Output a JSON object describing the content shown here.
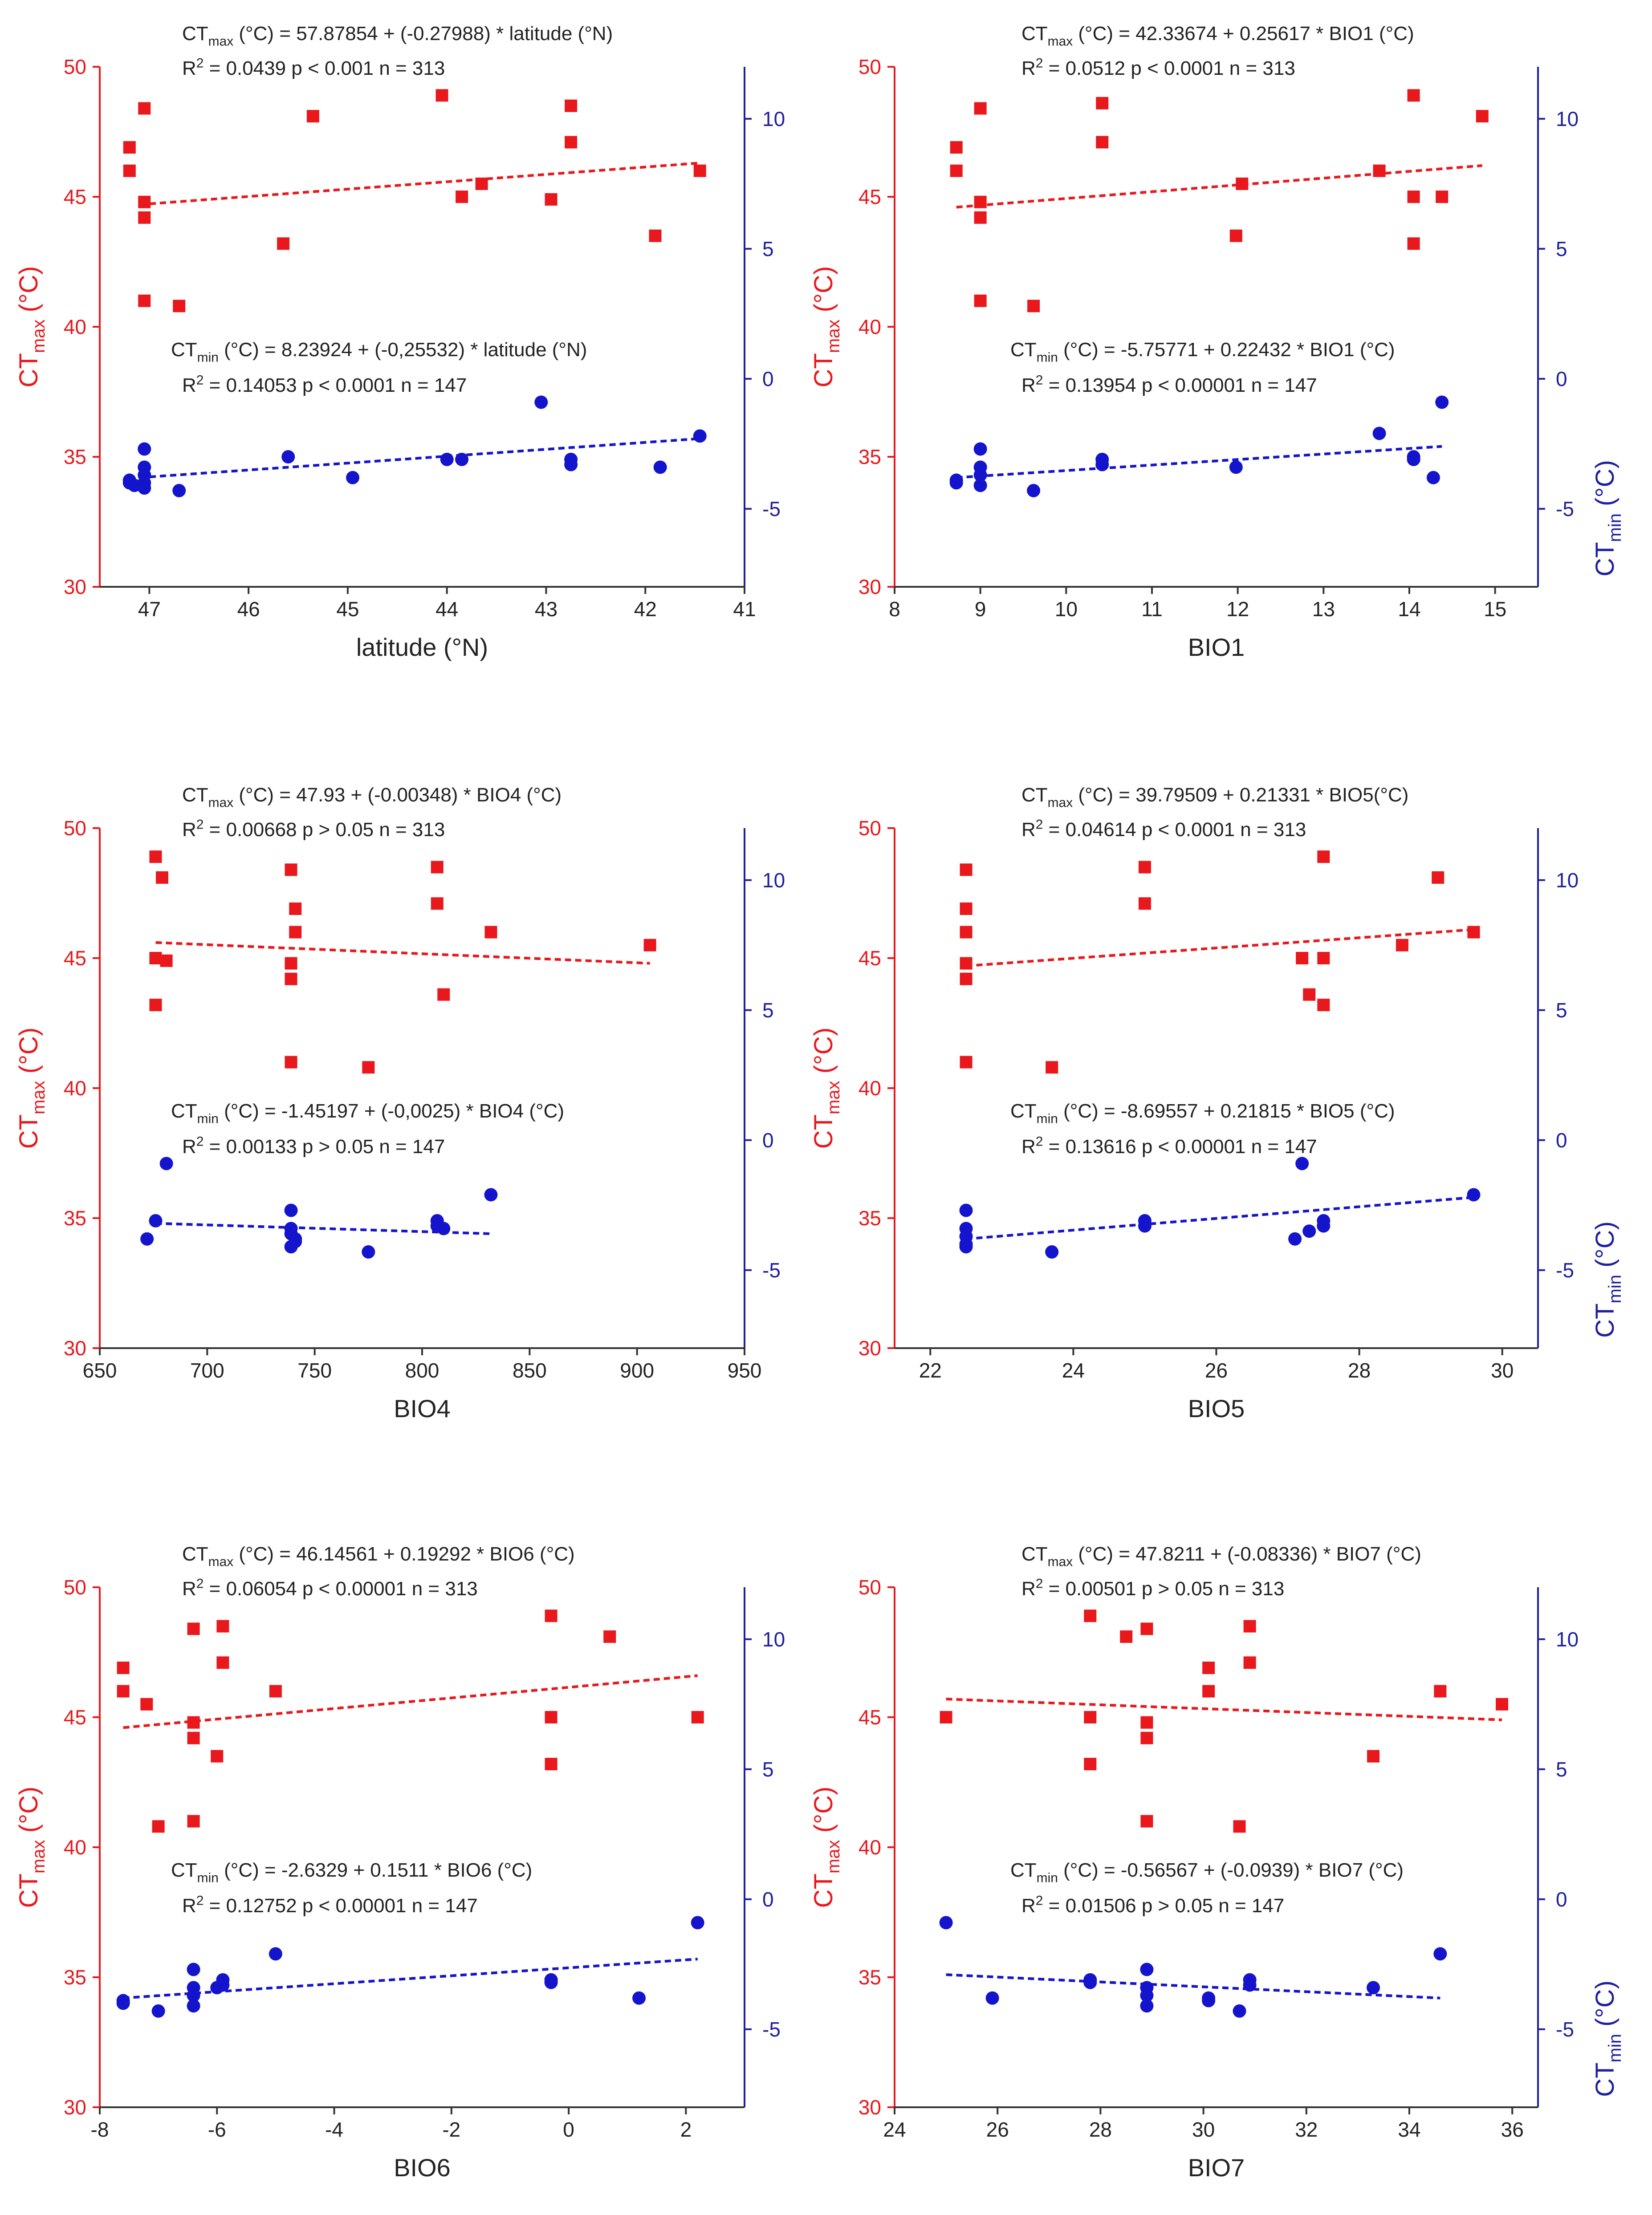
{
  "colors": {
    "ctmax": "#e8181c",
    "ctmin": "#1414cc",
    "axis_left": "#e8181c",
    "axis_right": "#1e1ea0",
    "text": "#222222"
  },
  "left_axis_label": {
    "main": "CT",
    "sub": "max",
    "unit": " (°C)"
  },
  "right_axis_label": {
    "main": "CT",
    "sub": "min",
    "unit": " (°C)"
  },
  "chart_data": [
    {
      "id": "latitude",
      "type": "scatter",
      "xlabel": "latitude (°N)",
      "xlim": [
        47.5,
        41
      ],
      "xticks": [
        47,
        46,
        45,
        44,
        43,
        42,
        41
      ],
      "xtick_labels": [
        "47",
        "46",
        "45",
        "44",
        "43",
        "42",
        "41"
      ],
      "ylim_left": [
        30,
        50
      ],
      "yticks_left": [
        30,
        35,
        40,
        45,
        50
      ],
      "ylim_right": [
        -8,
        12
      ],
      "yticks_right": [
        -5,
        0,
        5,
        10
      ],
      "show_right_label": false,
      "ctmax_equation": {
        "pre": "CT",
        "sub": "max",
        "post": " (°C) = 57.87854 + (-0.27988) * latitude (°N)"
      },
      "ctmax_stats": {
        "pre": "R",
        "sup": "2",
        "post": " = 0.0439   p < 0.001    n = 313"
      },
      "ctmin_equation": {
        "pre": "CT",
        "sub": "min",
        "post": " (°C) = 8.23924 + (-0,25532) * latitude (°N)"
      },
      "ctmin_stats": {
        "pre": "R",
        "sup": "2",
        "post": " = 0.14053   p < 0.0001    n = 147"
      },
      "ctmax_points": [
        [
          47.2,
          46.9
        ],
        [
          47.2,
          46.0
        ],
        [
          47.05,
          48.4
        ],
        [
          47.05,
          44.8
        ],
        [
          47.05,
          44.2
        ],
        [
          47.05,
          41.0
        ],
        [
          46.7,
          40.8
        ],
        [
          45.65,
          43.2
        ],
        [
          45.35,
          48.1
        ],
        [
          44.05,
          48.9
        ],
        [
          43.85,
          45.0
        ],
        [
          43.65,
          45.5
        ],
        [
          42.95,
          44.9
        ],
        [
          42.75,
          48.5
        ],
        [
          42.75,
          47.1
        ],
        [
          41.9,
          43.5
        ],
        [
          41.45,
          46.0
        ]
      ],
      "ctmin_points": [
        [
          47.2,
          -3.9
        ],
        [
          47.2,
          -4.0
        ],
        [
          47.15,
          -4.1
        ],
        [
          47.05,
          -2.7
        ],
        [
          47.05,
          -3.4
        ],
        [
          47.05,
          -3.7
        ],
        [
          47.05,
          -4.0
        ],
        [
          47.05,
          -4.2
        ],
        [
          46.7,
          -4.3
        ],
        [
          45.6,
          -3.0
        ],
        [
          44.95,
          -3.8
        ],
        [
          44.0,
          -3.1
        ],
        [
          43.85,
          -3.1
        ],
        [
          43.05,
          -0.9
        ],
        [
          42.75,
          -3.1
        ],
        [
          42.75,
          -3.3
        ],
        [
          41.85,
          -3.4
        ],
        [
          41.45,
          -2.2
        ]
      ],
      "ctmax_fit": [
        [
          47.1,
          44.7
        ],
        [
          41.45,
          46.3
        ]
      ],
      "ctmin_fit": [
        [
          47.1,
          -3.8
        ],
        [
          41.45,
          -2.3
        ]
      ]
    },
    {
      "id": "bio1",
      "type": "scatter",
      "xlabel": "BIO1",
      "xlim": [
        8,
        15.5
      ],
      "xticks": [
        8,
        9,
        10,
        11,
        12,
        13,
        14,
        15
      ],
      "xtick_labels": [
        "8",
        "9",
        "10",
        "11",
        "12",
        "13",
        "14",
        "15"
      ],
      "ylim_left": [
        30,
        50
      ],
      "yticks_left": [
        30,
        35,
        40,
        45,
        50
      ],
      "ylim_right": [
        -8,
        12
      ],
      "yticks_right": [
        -5,
        0,
        5,
        10
      ],
      "show_right_label": true,
      "ctmax_equation": {
        "pre": "CT",
        "sub": "max",
        "post": " (°C) = 42.33674 + 0.25617 * BIO1 (°C)"
      },
      "ctmax_stats": {
        "pre": "R",
        "sup": "2",
        "post": " = 0.0512   p < 0.0001    n = 313"
      },
      "ctmin_equation": {
        "pre": "CT",
        "sub": "min",
        "post": " (°C) = -5.75771 + 0.22432 * BIO1 (°C)"
      },
      "ctmin_stats": {
        "pre": "R",
        "sup": "2",
        "post": " = 0.13954   p < 0.00001    n = 147"
      },
      "ctmax_points": [
        [
          8.72,
          46.9
        ],
        [
          8.72,
          46.0
        ],
        [
          9.0,
          48.4
        ],
        [
          9.0,
          44.8
        ],
        [
          9.0,
          44.2
        ],
        [
          9.0,
          41.0
        ],
        [
          9.62,
          40.8
        ],
        [
          10.42,
          48.6
        ],
        [
          10.42,
          47.1
        ],
        [
          12.05,
          45.5
        ],
        [
          11.98,
          43.5
        ],
        [
          13.65,
          46.0
        ],
        [
          14.05,
          48.9
        ],
        [
          14.05,
          45.0
        ],
        [
          14.05,
          43.2
        ],
        [
          14.38,
          45.0
        ],
        [
          14.85,
          48.1
        ]
      ],
      "ctmin_points": [
        [
          8.72,
          -3.9
        ],
        [
          8.72,
          -4.0
        ],
        [
          9.0,
          -2.7
        ],
        [
          9.0,
          -3.4
        ],
        [
          9.0,
          -3.7
        ],
        [
          9.0,
          -4.1
        ],
        [
          9.62,
          -4.3
        ],
        [
          10.42,
          -3.1
        ],
        [
          10.42,
          -3.3
        ],
        [
          11.98,
          -3.4
        ],
        [
          13.65,
          -2.1
        ],
        [
          14.05,
          -3.0
        ],
        [
          14.05,
          -3.1
        ],
        [
          14.28,
          -3.8
        ],
        [
          14.38,
          -0.9
        ]
      ],
      "ctmax_fit": [
        [
          8.72,
          44.6
        ],
        [
          14.85,
          46.2
        ]
      ],
      "ctmin_fit": [
        [
          8.72,
          -3.8
        ],
        [
          14.38,
          -2.6
        ]
      ]
    },
    {
      "id": "bio4",
      "type": "scatter",
      "xlabel": "BIO4",
      "xlim": [
        650,
        950
      ],
      "xticks": [
        650,
        700,
        750,
        800,
        850,
        900,
        950
      ],
      "xtick_labels": [
        "650",
        "700",
        "750",
        "800",
        "850",
        "900",
        "950"
      ],
      "ylim_left": [
        30,
        50
      ],
      "yticks_left": [
        30,
        35,
        40,
        45,
        50
      ],
      "ylim_right": [
        -8,
        12
      ],
      "yticks_right": [
        -5,
        0,
        5,
        10
      ],
      "show_right_label": false,
      "ctmax_equation": {
        "pre": "CT",
        "sub": "max",
        "post": " (°C) = 47.93 + (-0.00348) * BIO4 (°C)"
      },
      "ctmax_stats": {
        "pre": "R",
        "sup": "2",
        "post": " = 0.00668   p > 0.05    n = 313"
      },
      "ctmin_equation": {
        "pre": "CT",
        "sub": "min",
        "post": " (°C) = -1.45197 + (-0,0025) * BIO4 (°C)"
      },
      "ctmin_stats": {
        "pre": "R",
        "sup": "2",
        "post": " = 0.00133    p > 0.05    n = 147"
      },
      "ctmax_points": [
        [
          676,
          48.9
        ],
        [
          679,
          48.1
        ],
        [
          676,
          45.0
        ],
        [
          681,
          44.9
        ],
        [
          676,
          43.2
        ],
        [
          739,
          48.4
        ],
        [
          741,
          46.9
        ],
        [
          741,
          46.0
        ],
        [
          739,
          44.8
        ],
        [
          739,
          44.2
        ],
        [
          739,
          41.0
        ],
        [
          775,
          40.8
        ],
        [
          807,
          48.5
        ],
        [
          807,
          47.1
        ],
        [
          810,
          43.6
        ],
        [
          832,
          46.0
        ],
        [
          906,
          45.5
        ]
      ],
      "ctmin_points": [
        [
          681,
          -0.9
        ],
        [
          676,
          -3.1
        ],
        [
          672,
          -3.8
        ],
        [
          739,
          -2.7
        ],
        [
          739,
          -3.4
        ],
        [
          739,
          -3.6
        ],
        [
          741,
          -3.8
        ],
        [
          739,
          -4.1
        ],
        [
          741,
          -3.9
        ],
        [
          775,
          -4.3
        ],
        [
          807,
          -3.1
        ],
        [
          807,
          -3.3
        ],
        [
          810,
          -3.4
        ],
        [
          832,
          -2.1
        ]
      ],
      "ctmax_fit": [
        [
          676,
          45.6
        ],
        [
          906,
          44.8
        ]
      ],
      "ctmin_fit": [
        [
          676,
          -3.2
        ],
        [
          832,
          -3.6
        ]
      ]
    },
    {
      "id": "bio5",
      "type": "scatter",
      "xlabel": "BIO5",
      "xlim": [
        21.5,
        30.5
      ],
      "xticks": [
        22,
        24,
        26,
        28,
        30
      ],
      "xtick_labels": [
        "22",
        "24",
        "26",
        "28",
        "30"
      ],
      "ylim_left": [
        30,
        50
      ],
      "yticks_left": [
        30,
        35,
        40,
        45,
        50
      ],
      "ylim_right": [
        -8,
        12
      ],
      "yticks_right": [
        -5,
        0,
        5,
        10
      ],
      "show_right_label": true,
      "ctmax_equation": {
        "pre": "CT",
        "sub": "max",
        "post": " (°C) = 39.79509 + 0.21331 * BIO5(°C)"
      },
      "ctmax_stats": {
        "pre": "R",
        "sup": "2",
        "post": " = 0.04614    p < 0.0001    n = 313"
      },
      "ctmin_equation": {
        "pre": "CT",
        "sub": "min",
        "post": " (°C) = -8.69557 + 0.21815 * BIO5 (°C)"
      },
      "ctmin_stats": {
        "pre": "R",
        "sup": "2",
        "post": " = 0.13616    p < 0.00001    n = 147"
      },
      "ctmax_points": [
        [
          22.5,
          48.4
        ],
        [
          22.5,
          46.9
        ],
        [
          22.5,
          46.0
        ],
        [
          22.5,
          44.8
        ],
        [
          22.5,
          44.2
        ],
        [
          22.5,
          41.0
        ],
        [
          23.7,
          40.8
        ],
        [
          25.0,
          48.5
        ],
        [
          25.0,
          47.1
        ],
        [
          27.2,
          45.0
        ],
        [
          27.3,
          43.6
        ],
        [
          27.5,
          43.2
        ],
        [
          27.5,
          48.9
        ],
        [
          27.5,
          45.0
        ],
        [
          28.6,
          45.5
        ],
        [
          29.1,
          48.1
        ],
        [
          29.6,
          46.0
        ]
      ],
      "ctmin_points": [
        [
          22.5,
          -2.7
        ],
        [
          22.5,
          -3.4
        ],
        [
          22.5,
          -3.7
        ],
        [
          22.5,
          -4.0
        ],
        [
          22.5,
          -4.1
        ],
        [
          23.7,
          -4.3
        ],
        [
          25.0,
          -3.1
        ],
        [
          25.0,
          -3.3
        ],
        [
          27.1,
          -3.8
        ],
        [
          27.2,
          -0.9
        ],
        [
          27.3,
          -3.5
        ],
        [
          27.5,
          -3.1
        ],
        [
          27.5,
          -3.3
        ],
        [
          29.6,
          -2.1
        ]
      ],
      "ctmax_fit": [
        [
          22.5,
          44.7
        ],
        [
          29.6,
          46.1
        ]
      ],
      "ctmin_fit": [
        [
          22.5,
          -3.8
        ],
        [
          29.6,
          -2.2
        ]
      ]
    },
    {
      "id": "bio6",
      "type": "scatter",
      "xlabel": "BIO6",
      "xlim": [
        -8,
        3
      ],
      "xticks": [
        -8,
        -6,
        -4,
        -2,
        0,
        2
      ],
      "xtick_labels": [
        "-8",
        "-6",
        "-4",
        "-2",
        "0",
        "2"
      ],
      "ylim_left": [
        30,
        50
      ],
      "yticks_left": [
        30,
        35,
        40,
        45,
        50
      ],
      "ylim_right": [
        -8,
        12
      ],
      "yticks_right": [
        -5,
        0,
        5,
        10
      ],
      "show_right_label": false,
      "ctmax_equation": {
        "pre": "CT",
        "sub": "max",
        "post": " (°C) = 46.14561 + 0.19292 * BIO6 (°C)"
      },
      "ctmax_stats": {
        "pre": "R",
        "sup": "2",
        "post": " = 0.06054    p < 0.00001    n = 313"
      },
      "ctmin_equation": {
        "pre": "CT",
        "sub": "min",
        "post": " (°C) = -2.6329 + 0.1511 * BIO6 (°C)"
      },
      "ctmin_stats": {
        "pre": "R",
        "sup": "2",
        "post": " = 0.12752    p < 0.00001    n = 147"
      },
      "ctmax_points": [
        [
          -7.6,
          46.9
        ],
        [
          -7.6,
          46.0
        ],
        [
          -7.2,
          45.5
        ],
        [
          -7.0,
          40.8
        ],
        [
          -6.4,
          48.4
        ],
        [
          -6.4,
          44.8
        ],
        [
          -6.4,
          44.2
        ],
        [
          -6.4,
          41.0
        ],
        [
          -6.0,
          43.5
        ],
        [
          -5.9,
          48.5
        ],
        [
          -5.9,
          47.1
        ],
        [
          -5.0,
          46.0
        ],
        [
          -0.3,
          48.9
        ],
        [
          -0.3,
          45.0
        ],
        [
          -0.3,
          43.2
        ],
        [
          0.7,
          48.1
        ],
        [
          2.2,
          45.0
        ]
      ],
      "ctmin_points": [
        [
          -7.6,
          -3.9
        ],
        [
          -7.6,
          -4.0
        ],
        [
          -7.0,
          -4.3
        ],
        [
          -6.4,
          -2.7
        ],
        [
          -6.4,
          -3.4
        ],
        [
          -6.4,
          -3.7
        ],
        [
          -6.4,
          -4.1
        ],
        [
          -6.0,
          -3.4
        ],
        [
          -5.9,
          -3.1
        ],
        [
          -5.9,
          -3.3
        ],
        [
          -5.0,
          -2.1
        ],
        [
          -0.3,
          -3.1
        ],
        [
          -0.3,
          -3.2
        ],
        [
          1.2,
          -3.8
        ],
        [
          2.2,
          -0.9
        ]
      ],
      "ctmax_fit": [
        [
          -7.6,
          44.6
        ],
        [
          2.2,
          46.6
        ]
      ],
      "ctmin_fit": [
        [
          -7.6,
          -3.8
        ],
        [
          2.2,
          -2.3
        ]
      ]
    },
    {
      "id": "bio7",
      "type": "scatter",
      "xlabel": "BIO7",
      "xlim": [
        24,
        36.5
      ],
      "xticks": [
        24,
        26,
        28,
        30,
        32,
        34,
        36
      ],
      "xtick_labels": [
        "24",
        "26",
        "28",
        "30",
        "32",
        "34",
        "36"
      ],
      "ylim_left": [
        30,
        50
      ],
      "yticks_left": [
        30,
        35,
        40,
        45,
        50
      ],
      "ylim_right": [
        -8,
        12
      ],
      "yticks_right": [
        -5,
        0,
        5,
        10
      ],
      "show_right_label": true,
      "ctmax_equation": {
        "pre": "CT",
        "sub": "max",
        "post": " (°C) = 47.8211 + (-0.08336) * BIO7 (°C)"
      },
      "ctmax_stats": {
        "pre": "R",
        "sup": "2",
        "post": " = 0.00501    p > 0.05    n = 313"
      },
      "ctmin_equation": {
        "pre": "CT",
        "sub": "min",
        "post": " (°C) = -0.56567 + (-0.0939) * BIO7 (°C)"
      },
      "ctmin_stats": {
        "pre": "R",
        "sup": "2",
        "post": " = 0.01506    p > 0.05    n = 147"
      },
      "ctmax_points": [
        [
          25.0,
          45.0
        ],
        [
          27.8,
          48.9
        ],
        [
          27.8,
          45.0
        ],
        [
          27.8,
          43.2
        ],
        [
          28.5,
          48.1
        ],
        [
          28.9,
          48.4
        ],
        [
          28.9,
          44.8
        ],
        [
          28.9,
          44.2
        ],
        [
          28.9,
          41.0
        ],
        [
          30.1,
          46.9
        ],
        [
          30.1,
          46.0
        ],
        [
          30.7,
          40.8
        ],
        [
          30.9,
          48.5
        ],
        [
          30.9,
          47.1
        ],
        [
          33.3,
          43.5
        ],
        [
          34.6,
          46.0
        ],
        [
          35.8,
          45.5
        ]
      ],
      "ctmin_points": [
        [
          25.0,
          -0.9
        ],
        [
          25.9,
          -3.8
        ],
        [
          27.8,
          -3.1
        ],
        [
          27.8,
          -3.2
        ],
        [
          28.9,
          -2.7
        ],
        [
          28.9,
          -3.4
        ],
        [
          28.9,
          -3.7
        ],
        [
          28.9,
          -4.1
        ],
        [
          30.1,
          -3.8
        ],
        [
          30.1,
          -3.9
        ],
        [
          30.7,
          -4.3
        ],
        [
          30.9,
          -3.1
        ],
        [
          30.9,
          -3.3
        ],
        [
          33.3,
          -3.4
        ],
        [
          34.6,
          -2.1
        ]
      ],
      "ctmax_fit": [
        [
          25.0,
          45.7
        ],
        [
          35.8,
          44.9
        ]
      ],
      "ctmin_fit": [
        [
          25.0,
          -2.9
        ],
        [
          34.6,
          -3.8
        ]
      ]
    }
  ]
}
